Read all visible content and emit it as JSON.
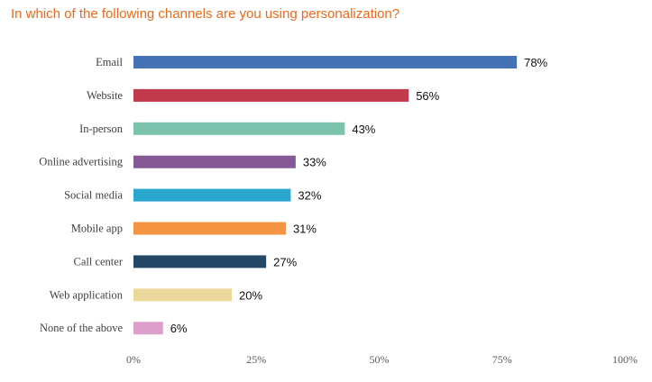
{
  "title": "In which of the following channels are you using personalization?",
  "colors": {
    "title": "#ee6a1a"
  },
  "chart_data": {
    "type": "bar",
    "orientation": "horizontal",
    "title": "In which of the following channels are you using personalization?",
    "categories": [
      "Email",
      "Website",
      "In-person",
      "Online advertising",
      "Social media",
      "Mobile app",
      "Call center",
      "Web application",
      "None of the above"
    ],
    "values": [
      78,
      56,
      43,
      33,
      32,
      31,
      27,
      20,
      6
    ],
    "value_labels": [
      "78%",
      "56%",
      "43%",
      "33%",
      "32%",
      "31%",
      "27%",
      "20%",
      "6%"
    ],
    "bar_colors": [
      "#4472b4",
      "#c0394d",
      "#7cc3ae",
      "#855a94",
      "#2aa7cf",
      "#f59443",
      "#254867",
      "#ecd89b",
      "#dc9fcb"
    ],
    "xlim": [
      0,
      100
    ],
    "xticks": [
      0,
      25,
      50,
      75,
      100
    ],
    "xtick_labels": [
      "0%",
      "25%",
      "50%",
      "75%",
      "100%"
    ],
    "grid": false,
    "legend": "none"
  }
}
